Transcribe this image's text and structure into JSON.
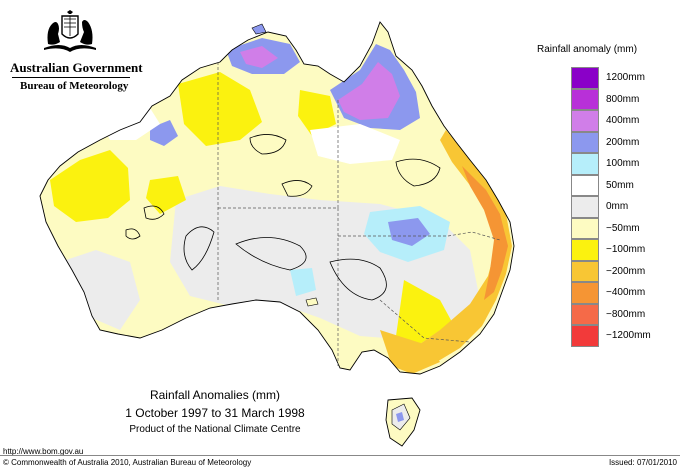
{
  "header": {
    "gov_title": "Australian Government",
    "gov_subtitle": "Bureau of Meteorology"
  },
  "legend": {
    "title": "Rainfall anomaly (mm)",
    "items": [
      {
        "label": "1200mm",
        "color": "#8a00c8"
      },
      {
        "label": "800mm",
        "color": "#b830d8"
      },
      {
        "label": "400mm",
        "color": "#d07ee8"
      },
      {
        "label": "200mm",
        "color": "#8c98ee"
      },
      {
        "label": "100mm",
        "color": "#b6eefa"
      },
      {
        "label": "50mm",
        "color": "#ffffff"
      },
      {
        "label": "0mm",
        "color": "#ececec"
      },
      {
        "label": "−50mm",
        "color": "#fdfbc2"
      },
      {
        "label": "−100mm",
        "color": "#fbf20f"
      },
      {
        "label": "−200mm",
        "color": "#f8c634"
      },
      {
        "label": "−400mm",
        "color": "#f59534"
      },
      {
        "label": "−800mm",
        "color": "#f56a48"
      },
      {
        "label": "−1200mm",
        "color": "#f23a3a"
      }
    ]
  },
  "caption": {
    "title": "Rainfall Anomalies (mm)",
    "period": "1 October 1997 to 31 March 1998",
    "product": "Product of the National Climate Centre"
  },
  "footer": {
    "url": "http://www.bom.gov.au",
    "copyright": "© Commonwealth of Australia 2010, Australian Bureau of Meteorology",
    "issued": "Issued: 07/01/2010"
  }
}
